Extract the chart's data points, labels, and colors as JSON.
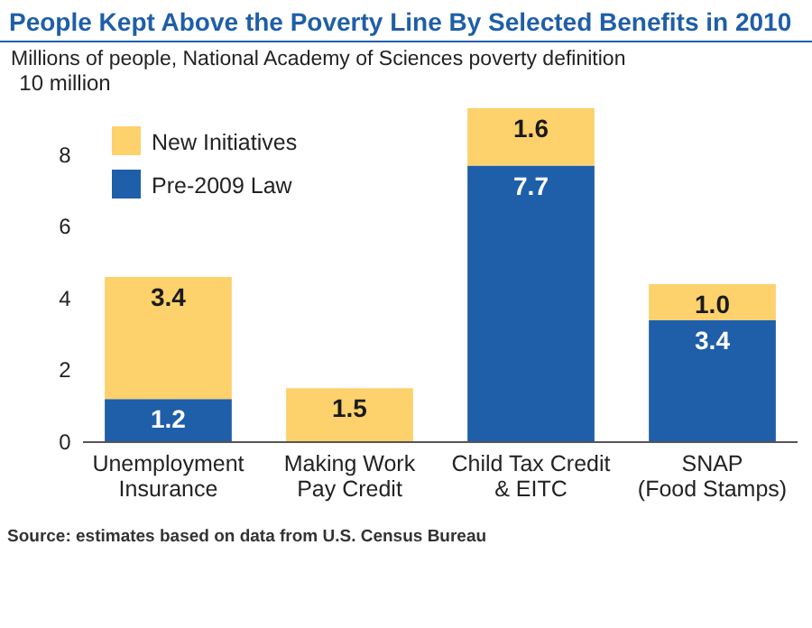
{
  "chart_data": {
    "type": "bar",
    "title": "People Kept Above the Poverty Line By Selected Benefits in 2010",
    "subtitle": "Millions of people, National Academy of Sciences poverty definition",
    "categories": [
      "Unemployment\nInsurance",
      "Making Work\nPay Credit",
      "Child Tax Credit\n& EITC",
      "SNAP\n(Food Stamps)"
    ],
    "stacked": true,
    "series": [
      {
        "name": "Pre-2009 Law",
        "color": "#1f5ea8",
        "values": [
          1.2,
          null,
          7.7,
          3.4
        ],
        "value_labels": [
          "1.2",
          null,
          "7.7",
          "3.4"
        ]
      },
      {
        "name": "New Initiatives",
        "color": "#fdd16b",
        "values": [
          3.4,
          1.5,
          1.6,
          1.0
        ],
        "value_labels": [
          "3.4",
          "1.5",
          "1.6",
          "1.0"
        ]
      }
    ],
    "ylim": [
      0,
      10
    ],
    "yticks": [
      0,
      2,
      4,
      6,
      8,
      {
        "value": 10,
        "label": "10 million"
      }
    ],
    "legend": "top left",
    "annotations": [
      "Source: estimates based on data from U.S. Census Bureau"
    ]
  }
}
